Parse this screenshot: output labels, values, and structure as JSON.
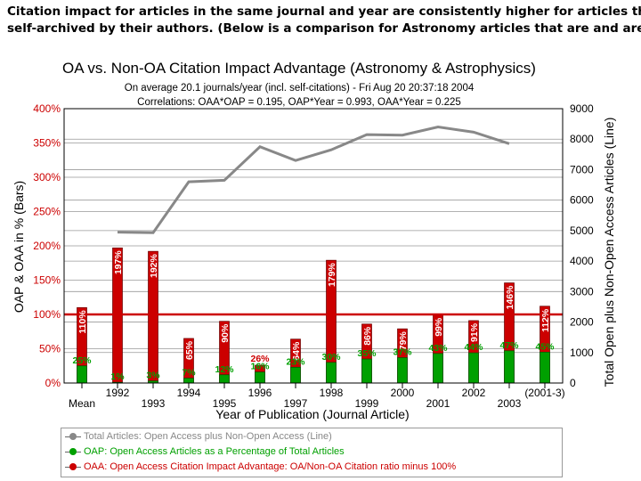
{
  "headline": {
    "line1": "Citation impact for articles in the same journal and year are consistently higher for articles that are",
    "line2": "self-archived by their authors. (Below is a comparison for Astronomy articles that are and are not)"
  },
  "chart_data": {
    "type": "bar",
    "title": "OA vs. Non-OA Citation Impact Advantage (Astronomy & Astrophysics)",
    "subtitle1": "On average 20.1 journals/year (incl. self-citations) - Fri Aug 20 20:37:18 2004",
    "subtitle2": "Correlations:  OAA*OAP = 0.195, OAP*Year = 0.993, OAA*Year = 0.225",
    "xlabel": "Year of Publication (Journal Article)",
    "ylabel_left": "OAP & OAA in % (Bars)",
    "ylabel_right": "Total Open plus Non-Open Access Articles (Line)",
    "categories": [
      "Mean",
      "1992",
      "1993",
      "1994",
      "1995",
      "1996",
      "1997",
      "1998",
      "1999",
      "2000",
      "2001",
      "2002",
      "2003",
      "(2001-3)"
    ],
    "ylim_left": [
      0,
      400
    ],
    "yticks_left": [
      "0%",
      "50%",
      "100%",
      "150%",
      "200%",
      "250%",
      "300%",
      "350%",
      "400%"
    ],
    "ylim_right": [
      0,
      9000
    ],
    "yticks_right": [
      "0",
      "1000",
      "2000",
      "3000",
      "4000",
      "5000",
      "6000",
      "7000",
      "8000",
      "9000"
    ],
    "series": [
      {
        "name": "OAA: Open Access Citation Impact Advantage: OA/Non-OA Citation ratio minus 100%",
        "type": "bar",
        "color": "#cc0000",
        "values": [
          110,
          197,
          192,
          65,
          90,
          26,
          64,
          179,
          86,
          79,
          99,
          91,
          146,
          112
        ],
        "labels": [
          "110%",
          "197%",
          "192%",
          "65%",
          "90%",
          "26%",
          "64%",
          "179%",
          "86%",
          "79%",
          "99%",
          "91%",
          "146%",
          "112%"
        ]
      },
      {
        "name": "OAP: Open Access Articles as a Percentage of Total Articles",
        "type": "bar",
        "color": "#00a000",
        "values": [
          25,
          1,
          3,
          7,
          12,
          16,
          23,
          30,
          35,
          37,
          43,
          44,
          47,
          45
        ],
        "labels": [
          "25%",
          "1%",
          "3%",
          "7%",
          "12%",
          "16%",
          "23%",
          "30%",
          "35%",
          "37%",
          "43%",
          "44%",
          "47%",
          "45%"
        ]
      },
      {
        "name": "Total Articles: Open Access plus Non-Open Access (Line)",
        "type": "line",
        "color": "#888888",
        "x": [
          "1992",
          "1993",
          "1994",
          "1995",
          "1996",
          "1997",
          "1998",
          "1999",
          "2000",
          "2001",
          "2002",
          "2003"
        ],
        "values": [
          4950,
          4930,
          6600,
          6650,
          7750,
          7300,
          7650,
          8150,
          8130,
          8400,
          8230,
          7850
        ]
      }
    ],
    "grid": true,
    "legend_position": "bottom"
  },
  "legend": [
    {
      "label": "Total Articles: Open Access plus Non-Open Access (Line)",
      "color": "#888888"
    },
    {
      "label": "OAP: Open Access Articles as a Percentage of Total Articles",
      "color": "#00a000"
    },
    {
      "label": "OAA: Open Access Citation Impact Advantage: OA/Non-OA Citation ratio minus 100%",
      "color": "#cc0000"
    }
  ]
}
